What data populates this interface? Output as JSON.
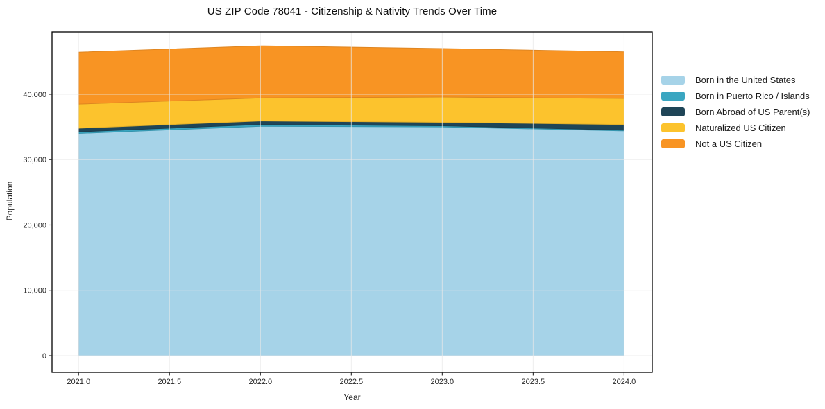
{
  "title": "US ZIP Code 78041 - Citizenship & Nativity Trends Over Time",
  "chart_data": {
    "type": "area",
    "stacked": true,
    "title": "US ZIP Code 78041 - Citizenship & Nativity Trends Over Time",
    "xlabel": "Year",
    "ylabel": "Population",
    "x": [
      2021,
      2022,
      2023,
      2024
    ],
    "series": [
      {
        "name": "Born in the United States",
        "color": "#A6D3E8",
        "values": [
          34000,
          35100,
          35000,
          34400
        ]
      },
      {
        "name": "Born in Puerto Rico / Islands",
        "color": "#3AA6C1",
        "values": [
          250,
          270,
          170,
          110
        ]
      },
      {
        "name": "Born Abroad of US Parent(s)",
        "color": "#1F4557",
        "values": [
          550,
          530,
          530,
          850
        ]
      },
      {
        "name": "Naturalized US Citizen",
        "color": "#FCC32D",
        "values": [
          3700,
          3550,
          3880,
          4000
        ]
      },
      {
        "name": "Not a US Citizen",
        "color": "#F89423",
        "values": [
          7950,
          7960,
          7420,
          7140
        ]
      }
    ],
    "xlim": [
      2020.854,
      2024.155
    ],
    "ylim": [
      -2550,
      49550
    ],
    "xticks": {
      "values": [
        2021.0,
        2021.5,
        2022.0,
        2022.5,
        2023.0,
        2023.5,
        2024.0
      ],
      "labels": [
        "2021.0",
        "2021.5",
        "2022.0",
        "2022.5",
        "2023.0",
        "2023.5",
        "2024.0"
      ]
    },
    "yticks": {
      "values": [
        0,
        10000,
        20000,
        30000,
        40000
      ],
      "labels": [
        "0",
        "10,000",
        "20,000",
        "30,000",
        "40,000"
      ]
    },
    "grid": true,
    "grid_color": "#E8E8E8",
    "spine_color": "#000000",
    "tick_label_color": "#262626",
    "legend_position": "outside-right"
  }
}
